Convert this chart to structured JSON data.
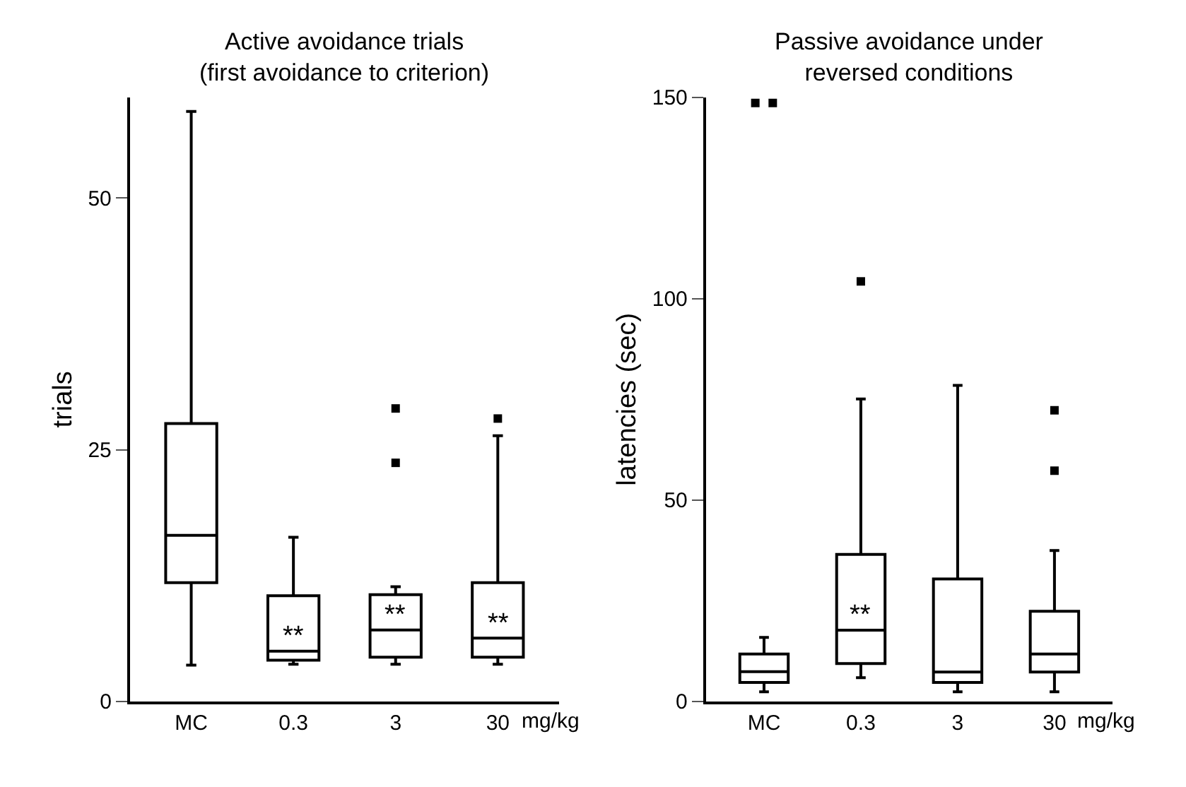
{
  "chart_data": [
    {
      "type": "box",
      "title": "Active avoidance trials\n(first avoidance to criterion)",
      "ylabel": "trials",
      "categories": [
        "MC",
        "0.3",
        "3",
        "30"
      ],
      "ylim": [
        0,
        60
      ],
      "yticks": [
        0,
        25,
        50
      ],
      "boxes": [
        {
          "low": 3.6,
          "q1": 11.8,
          "median": 16.5,
          "q3": 27.6,
          "high": 58.6
        },
        {
          "low": 3.7,
          "q1": 4.1,
          "median": 5.0,
          "q3": 10.5,
          "high": 16.3
        },
        {
          "low": 3.7,
          "q1": 4.4,
          "median": 7.1,
          "q3": 10.6,
          "high": 11.4,
          "outliers": [
            29.1,
            23.7
          ]
        },
        {
          "low": 3.7,
          "q1": 4.4,
          "median": 6.3,
          "q3": 11.8,
          "high": 26.4,
          "outliers": [
            28.1
          ]
        }
      ],
      "annotations": [
        "mg/kg",
        "**",
        "**",
        "**"
      ]
    },
    {
      "type": "box",
      "title": "Passive avoidance under\nreversed conditions",
      "ylabel": "latencies (sec)",
      "categories": [
        "MC",
        "0.3",
        "3",
        "30"
      ],
      "ylim": [
        0,
        150
      ],
      "yticks": [
        0,
        50,
        100,
        150
      ],
      "boxes": [
        {
          "low": 2.4,
          "q1": 4.7,
          "median": 7.4,
          "q3": 11.8,
          "high": 15.9,
          "outliers": [
            148.6,
            148.6
          ]
        },
        {
          "low": 5.9,
          "q1": 9.4,
          "median": 17.7,
          "q3": 36.5,
          "high": 75.1,
          "outliers": [
            104.3
          ]
        },
        {
          "low": 2.4,
          "q1": 4.7,
          "median": 7.3,
          "q3": 30.4,
          "high": 78.5
        },
        {
          "low": 2.4,
          "q1": 7.3,
          "median": 11.8,
          "q3": 22.4,
          "high": 37.5,
          "outliers": [
            72.3,
            57.3
          ]
        }
      ],
      "annotations": [
        "mg/kg",
        "**"
      ]
    }
  ]
}
